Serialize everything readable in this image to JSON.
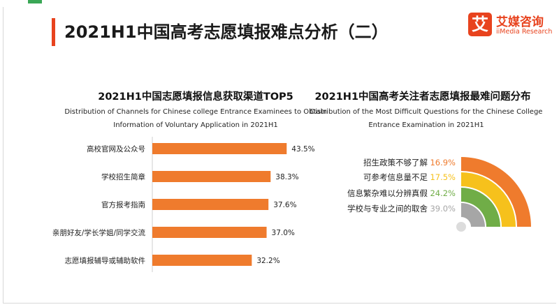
{
  "header": {
    "title": "2021H1中国高考志愿填报难点分析（二）",
    "logo_mark": "艾",
    "logo_cn": "艾媒咨询",
    "logo_en": "iiMedia Research"
  },
  "colors": {
    "accent": "#e8431e",
    "bar": "#ef7b2d",
    "ring_orange": "#ef7b2d",
    "ring_yellow": "#f6c11c",
    "ring_green": "#70ad47",
    "ring_gray": "#a6a6a6"
  },
  "chart_data": [
    {
      "type": "bar",
      "orientation": "horizontal",
      "title": "2021H1中国志愿填报信息获取渠道TOP5",
      "subtitle": "Distribution of Channels for Chinese college Entrance Examinees to Obtain Information of Voluntary Application in 2021H1",
      "categories": [
        "高校官网及公众号",
        "学校招生简章",
        "官方报考指南",
        "亲朋好友/学长学姐/同学交流",
        "志愿填报辅导或辅助软件"
      ],
      "values": [
        43.5,
        38.3,
        37.6,
        37.0,
        32.2
      ],
      "value_labels": [
        "43.5%",
        "38.3%",
        "37.6%",
        "37.0%",
        "32.2%"
      ],
      "xlim": [
        0,
        50
      ]
    },
    {
      "type": "pie",
      "style": "radial-quarter-rings",
      "title": "2021H1中国高考关注者志愿填报最难问题分布",
      "subtitle": "Distribution of the Most Difficult Questions for the Chinese College Entrance Examination in 2021H1",
      "categories": [
        "招生政策不够了解",
        "可参考信息量不足",
        "信息繁杂难以分辨真假",
        "学校与专业之间的取舍"
      ],
      "values": [
        16.9,
        17.5,
        24.2,
        39.0
      ],
      "value_labels": [
        "16.9%",
        "17.5%",
        "24.2%",
        "39.0%"
      ],
      "colors": [
        "#ef7b2d",
        "#f6c11c",
        "#70ad47",
        "#a6a6a6"
      ]
    }
  ]
}
